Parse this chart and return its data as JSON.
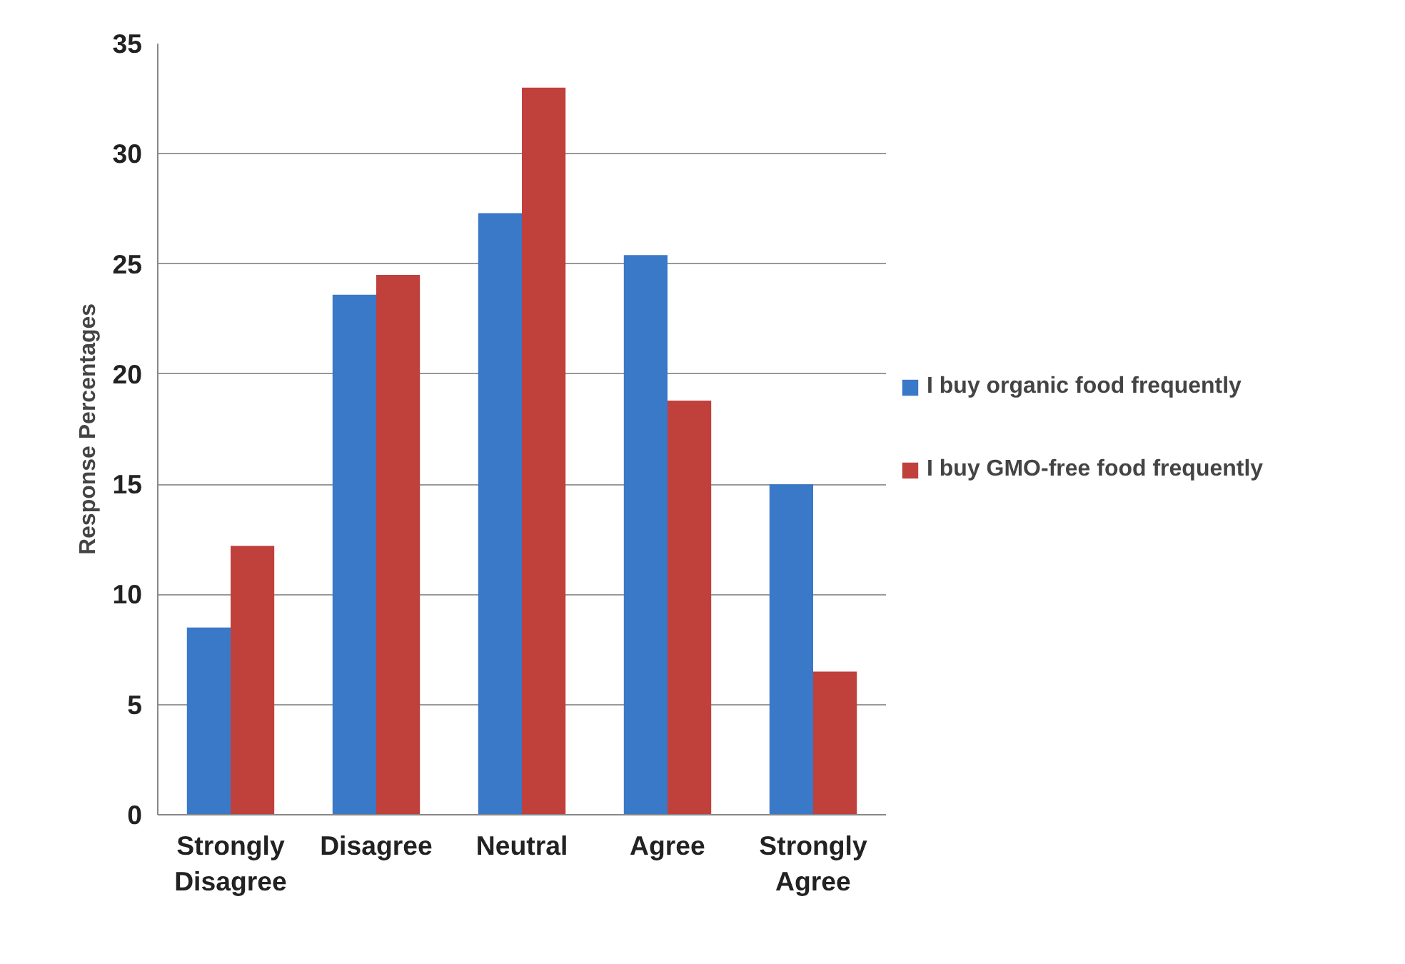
{
  "chart_data": {
    "type": "bar",
    "ylabel": "Response Percentages",
    "categories": [
      "Strongly Disagree",
      "Disagree",
      "Neutral",
      "Agree",
      "Strongly Agree"
    ],
    "series": [
      {
        "name": "I buy organic food frequently",
        "color": "#3a78c8",
        "values": [
          8.5,
          23.6,
          27.3,
          25.4,
          15.0
        ]
      },
      {
        "name": "I buy GMO-free food frequently",
        "color": "#c0403c",
        "values": [
          12.2,
          24.5,
          33.0,
          18.8,
          6.5
        ]
      }
    ],
    "ylim": [
      0,
      35
    ],
    "yticks": [
      0,
      5,
      10,
      15,
      20,
      25,
      30,
      35
    ],
    "grid": "y",
    "legend": "right"
  }
}
